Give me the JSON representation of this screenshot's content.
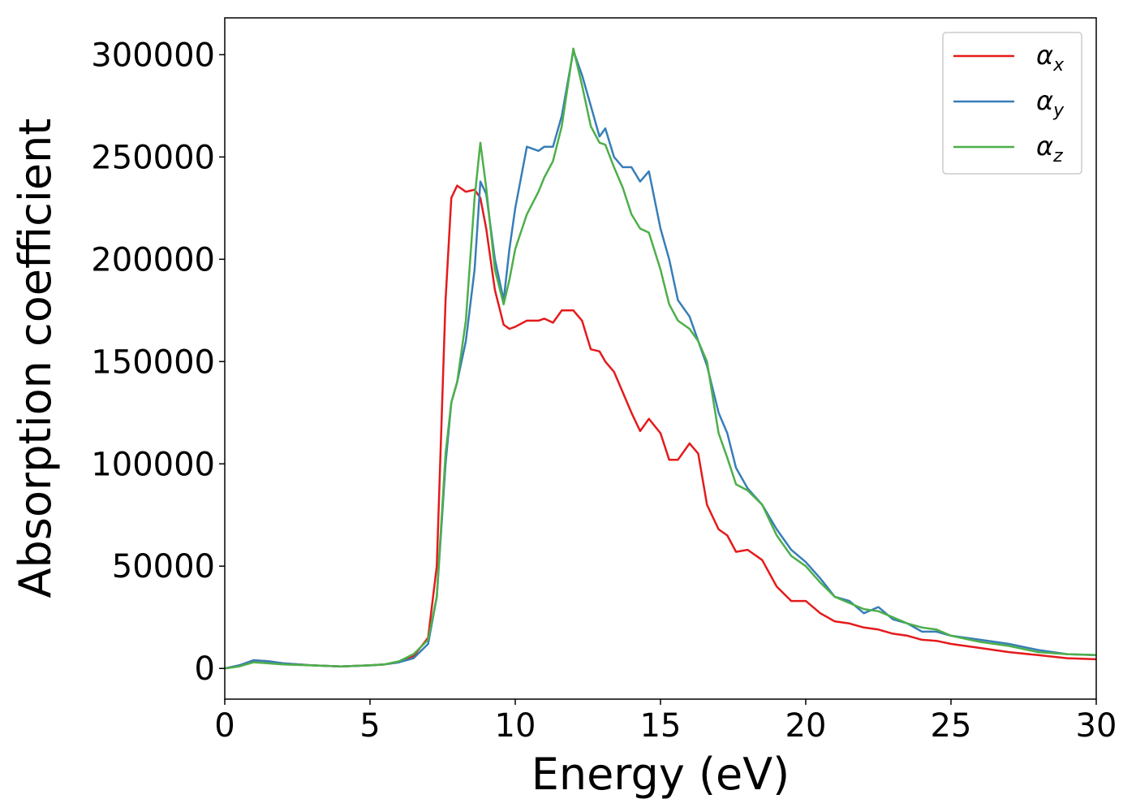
{
  "chart_data": {
    "type": "line",
    "xlabel": "Energy (eV)",
    "ylabel": "Absorption coefficient",
    "xlim": [
      0,
      30
    ],
    "ylim": [
      -15000,
      318000
    ],
    "xticks": [
      0,
      5,
      10,
      15,
      20,
      25,
      30
    ],
    "yticks": [
      0,
      50000,
      100000,
      150000,
      200000,
      250000,
      300000
    ],
    "legend": "upper right",
    "grid": false,
    "x": [
      0,
      0.5,
      1,
      1.5,
      2,
      3,
      4,
      5,
      5.5,
      6,
      6.5,
      7,
      7.3,
      7.6,
      7.8,
      8,
      8.3,
      8.6,
      8.8,
      9,
      9.3,
      9.6,
      9.8,
      10,
      10.4,
      10.8,
      11,
      11.3,
      11.6,
      12,
      12.3,
      12.6,
      12.9,
      13.1,
      13.4,
      13.7,
      14,
      14.3,
      14.6,
      15,
      15.3,
      15.6,
      16,
      16.3,
      16.6,
      17,
      17.3,
      17.6,
      18,
      18.5,
      19,
      19.5,
      20,
      20.5,
      21,
      21.5,
      22,
      22.5,
      23,
      23.5,
      24,
      24.5,
      25,
      26,
      27,
      28,
      29,
      30
    ],
    "series": [
      {
        "name": "αx",
        "color": "#e41a1c",
        "values": [
          0,
          1500,
          4000,
          3500,
          2500,
          1500,
          1000,
          1500,
          2000,
          3000,
          6000,
          15000,
          50000,
          180000,
          230000,
          236000,
          233000,
          234000,
          230000,
          215000,
          185000,
          168000,
          166000,
          167000,
          170000,
          170000,
          171000,
          169000,
          175000,
          175000,
          170000,
          156000,
          155000,
          150000,
          145000,
          135000,
          125000,
          116000,
          122000,
          115000,
          102000,
          102000,
          110000,
          105000,
          80000,
          68000,
          65000,
          57000,
          58000,
          53000,
          40000,
          33000,
          33000,
          27000,
          23000,
          22000,
          20000,
          19000,
          17000,
          16000,
          14000,
          13500,
          12000,
          10000,
          8000,
          6500,
          5000,
          4500
        ]
      },
      {
        "name": "αy",
        "color": "#377eb8",
        "values": [
          0,
          1500,
          4000,
          3500,
          2500,
          1500,
          1000,
          1500,
          2000,
          3000,
          5000,
          12000,
          35000,
          100000,
          130000,
          140000,
          160000,
          195000,
          238000,
          232000,
          200000,
          180000,
          205000,
          225000,
          255000,
          253000,
          255000,
          255000,
          270000,
          302000,
          290000,
          275000,
          260000,
          264000,
          250000,
          245000,
          245000,
          238000,
          243000,
          215000,
          200000,
          180000,
          172000,
          160000,
          148000,
          125000,
          115000,
          98000,
          88000,
          80000,
          68000,
          58000,
          52000,
          44000,
          35000,
          33000,
          27000,
          30000,
          24000,
          22000,
          18000,
          18000,
          16000,
          14000,
          12000,
          9000,
          7000,
          6500
        ]
      },
      {
        "name": "αz",
        "color": "#4daf4a",
        "values": [
          0,
          1000,
          3000,
          2500,
          2000,
          1500,
          1000,
          1500,
          2000,
          3500,
          7000,
          14000,
          35000,
          105000,
          130000,
          140000,
          170000,
          230000,
          257000,
          235000,
          195000,
          178000,
          190000,
          205000,
          222000,
          233000,
          240000,
          248000,
          265000,
          303000,
          285000,
          265000,
          257000,
          256000,
          245000,
          235000,
          222000,
          215000,
          213000,
          195000,
          178000,
          170000,
          166000,
          160000,
          150000,
          115000,
          103000,
          90000,
          87000,
          80000,
          65000,
          55000,
          50000,
          42000,
          35000,
          32000,
          29000,
          28000,
          25000,
          22000,
          20000,
          19000,
          16000,
          13000,
          11000,
          8000,
          7000,
          6500
        ]
      }
    ]
  }
}
